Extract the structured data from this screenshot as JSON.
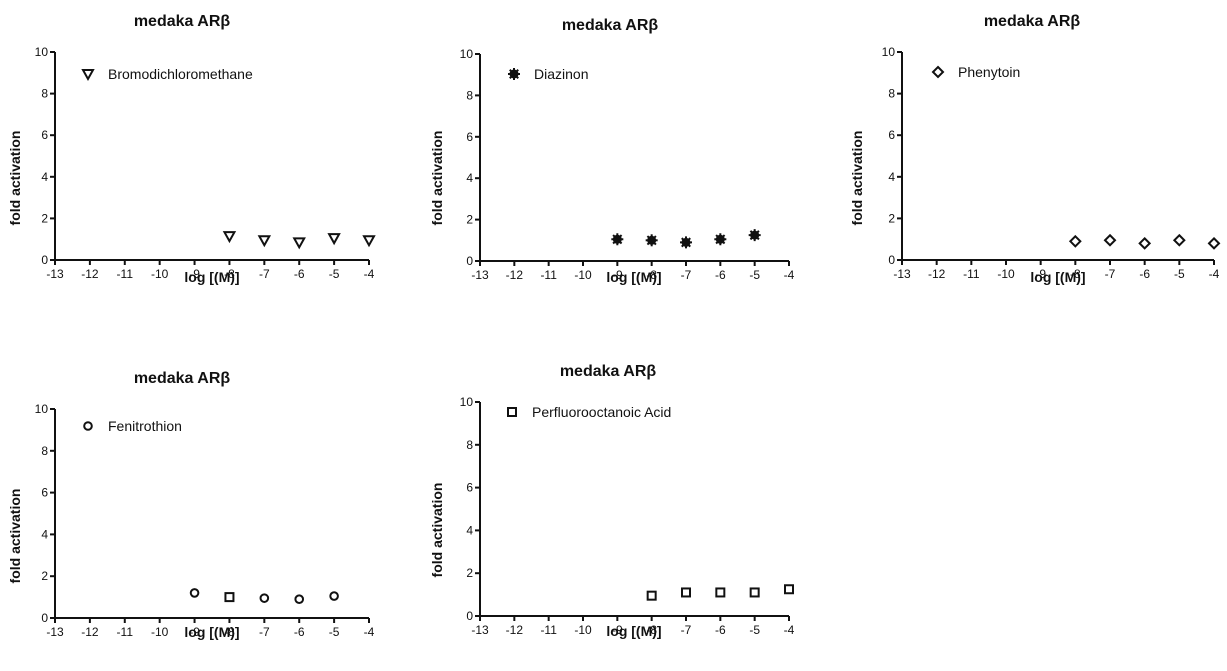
{
  "chart_data": [
    {
      "type": "scatter",
      "title": "medaka ARβ",
      "xlabel": "log [(M)]",
      "ylabel": "fold activation",
      "xlim": [
        -13,
        -4
      ],
      "ylim": [
        0,
        10
      ],
      "x_ticks": [
        -13,
        -12,
        -11,
        -10,
        -9,
        -8,
        -7,
        -6,
        -5,
        -4
      ],
      "y_ticks": [
        0,
        2,
        4,
        6,
        8,
        10
      ],
      "grid": false,
      "legend": "top-left",
      "series": [
        {
          "name": "Bromodichloromethane",
          "marker": "triangle-down-open",
          "points": [
            {
              "x": -8,
              "y": 1.15
            },
            {
              "x": -7,
              "y": 0.95
            },
            {
              "x": -6,
              "y": 0.85
            },
            {
              "x": -5,
              "y": 1.05
            },
            {
              "x": -4,
              "y": 0.95
            }
          ]
        }
      ]
    },
    {
      "type": "scatter",
      "title": "medaka ARβ",
      "xlabel": "log [(M)]",
      "ylabel": "fold activation",
      "xlim": [
        -13,
        -4
      ],
      "ylim": [
        0,
        10
      ],
      "x_ticks": [
        -13,
        -12,
        -11,
        -10,
        -9,
        -8,
        -7,
        -6,
        -5,
        -4
      ],
      "y_ticks": [
        0,
        2,
        4,
        6,
        8,
        10
      ],
      "grid": false,
      "legend": "top-left",
      "series": [
        {
          "name": "Diazinon",
          "marker": "star-filled",
          "points": [
            {
              "x": -9,
              "y": 1.05
            },
            {
              "x": -8,
              "y": 1.0
            },
            {
              "x": -7,
              "y": 0.9
            },
            {
              "x": -6,
              "y": 1.05
            },
            {
              "x": -5,
              "y": 1.25
            }
          ]
        }
      ]
    },
    {
      "type": "scatter",
      "title": "medaka ARβ",
      "xlabel": "log [(M)]",
      "ylabel": "fold activation",
      "xlim": [
        -13,
        -4
      ],
      "ylim": [
        0,
        10
      ],
      "x_ticks": [
        -13,
        -12,
        -11,
        -10,
        -9,
        -8,
        -7,
        -6,
        -5,
        -4
      ],
      "y_ticks": [
        0,
        2,
        4,
        6,
        8,
        10
      ],
      "grid": false,
      "legend": "top-left",
      "series": [
        {
          "name": "Phenytoin",
          "marker": "diamond-open",
          "points": [
            {
              "x": -8,
              "y": 0.9
            },
            {
              "x": -7,
              "y": 0.95
            },
            {
              "x": -6,
              "y": 0.8
            },
            {
              "x": -5,
              "y": 0.95
            },
            {
              "x": -4,
              "y": 0.8
            }
          ]
        }
      ]
    },
    {
      "type": "scatter",
      "title": "medaka ARβ",
      "xlabel": "log [(M)]",
      "ylabel": "fold activation",
      "xlim": [
        -13,
        -4
      ],
      "ylim": [
        0,
        10
      ],
      "x_ticks": [
        -13,
        -12,
        -11,
        -10,
        -9,
        -8,
        -7,
        -6,
        -5,
        -4
      ],
      "y_ticks": [
        0,
        2,
        4,
        6,
        8,
        10
      ],
      "grid": false,
      "legend": "top-left",
      "series": [
        {
          "name": "Fenitrothion",
          "marker": "circle-open",
          "points": [
            {
              "x": -9,
              "y": 1.2
            },
            {
              "x": -7,
              "y": 0.95
            },
            {
              "x": -6,
              "y": 0.9
            },
            {
              "x": -5,
              "y": 1.05
            }
          ]
        },
        {
          "name": "",
          "marker": "square-open",
          "points": [
            {
              "x": -8,
              "y": 1.0
            }
          ]
        }
      ]
    },
    {
      "type": "scatter",
      "title": "medaka ARβ",
      "xlabel": "log [(M)]",
      "ylabel": "fold activation",
      "xlim": [
        -13,
        -4
      ],
      "ylim": [
        0,
        10
      ],
      "x_ticks": [
        -13,
        -12,
        -11,
        -10,
        -9,
        -8,
        -7,
        -6,
        -5,
        -4
      ],
      "y_ticks": [
        0,
        2,
        4,
        6,
        8,
        10
      ],
      "grid": false,
      "legend": "top-left",
      "series": [
        {
          "name": "Perfluorooctanoic Acid",
          "marker": "square-open",
          "points": [
            {
              "x": -8,
              "y": 0.95
            },
            {
              "x": -7,
              "y": 1.1
            },
            {
              "x": -6,
              "y": 1.1
            },
            {
              "x": -5,
              "y": 1.1
            },
            {
              "x": -4,
              "y": 1.25
            }
          ]
        }
      ]
    }
  ]
}
